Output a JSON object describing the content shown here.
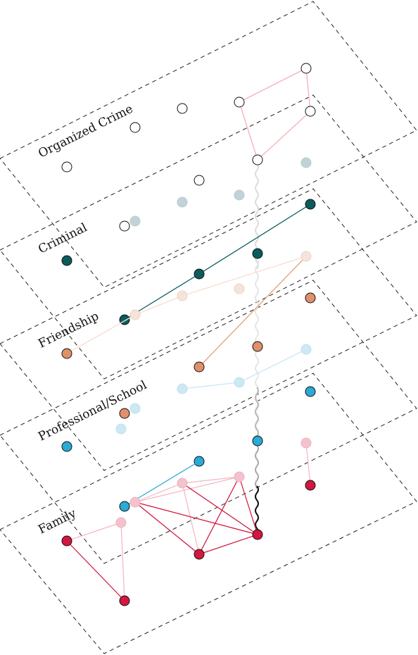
{
  "diagram": {
    "type": "multilayer-network",
    "colors": {
      "organized_crime": "#ffffff",
      "criminal": "#0b5c5c",
      "friendship": "#e0906a",
      "professional_school": "#2aaad6",
      "family": "#d3173f",
      "interlayer_tie": "#000000"
    },
    "layers": [
      {
        "id": "L1",
        "label": "Organized Crime",
        "color_key": "organized_crime"
      },
      {
        "id": "L2",
        "label": "Criminal",
        "color_key": "criminal"
      },
      {
        "id": "L3",
        "label": "Friendship",
        "color_key": "friendship"
      },
      {
        "id": "L4",
        "label": "Professional/School",
        "color_key": "professional_school"
      },
      {
        "id": "L5",
        "label": "Family",
        "color_key": "family"
      }
    ]
  }
}
